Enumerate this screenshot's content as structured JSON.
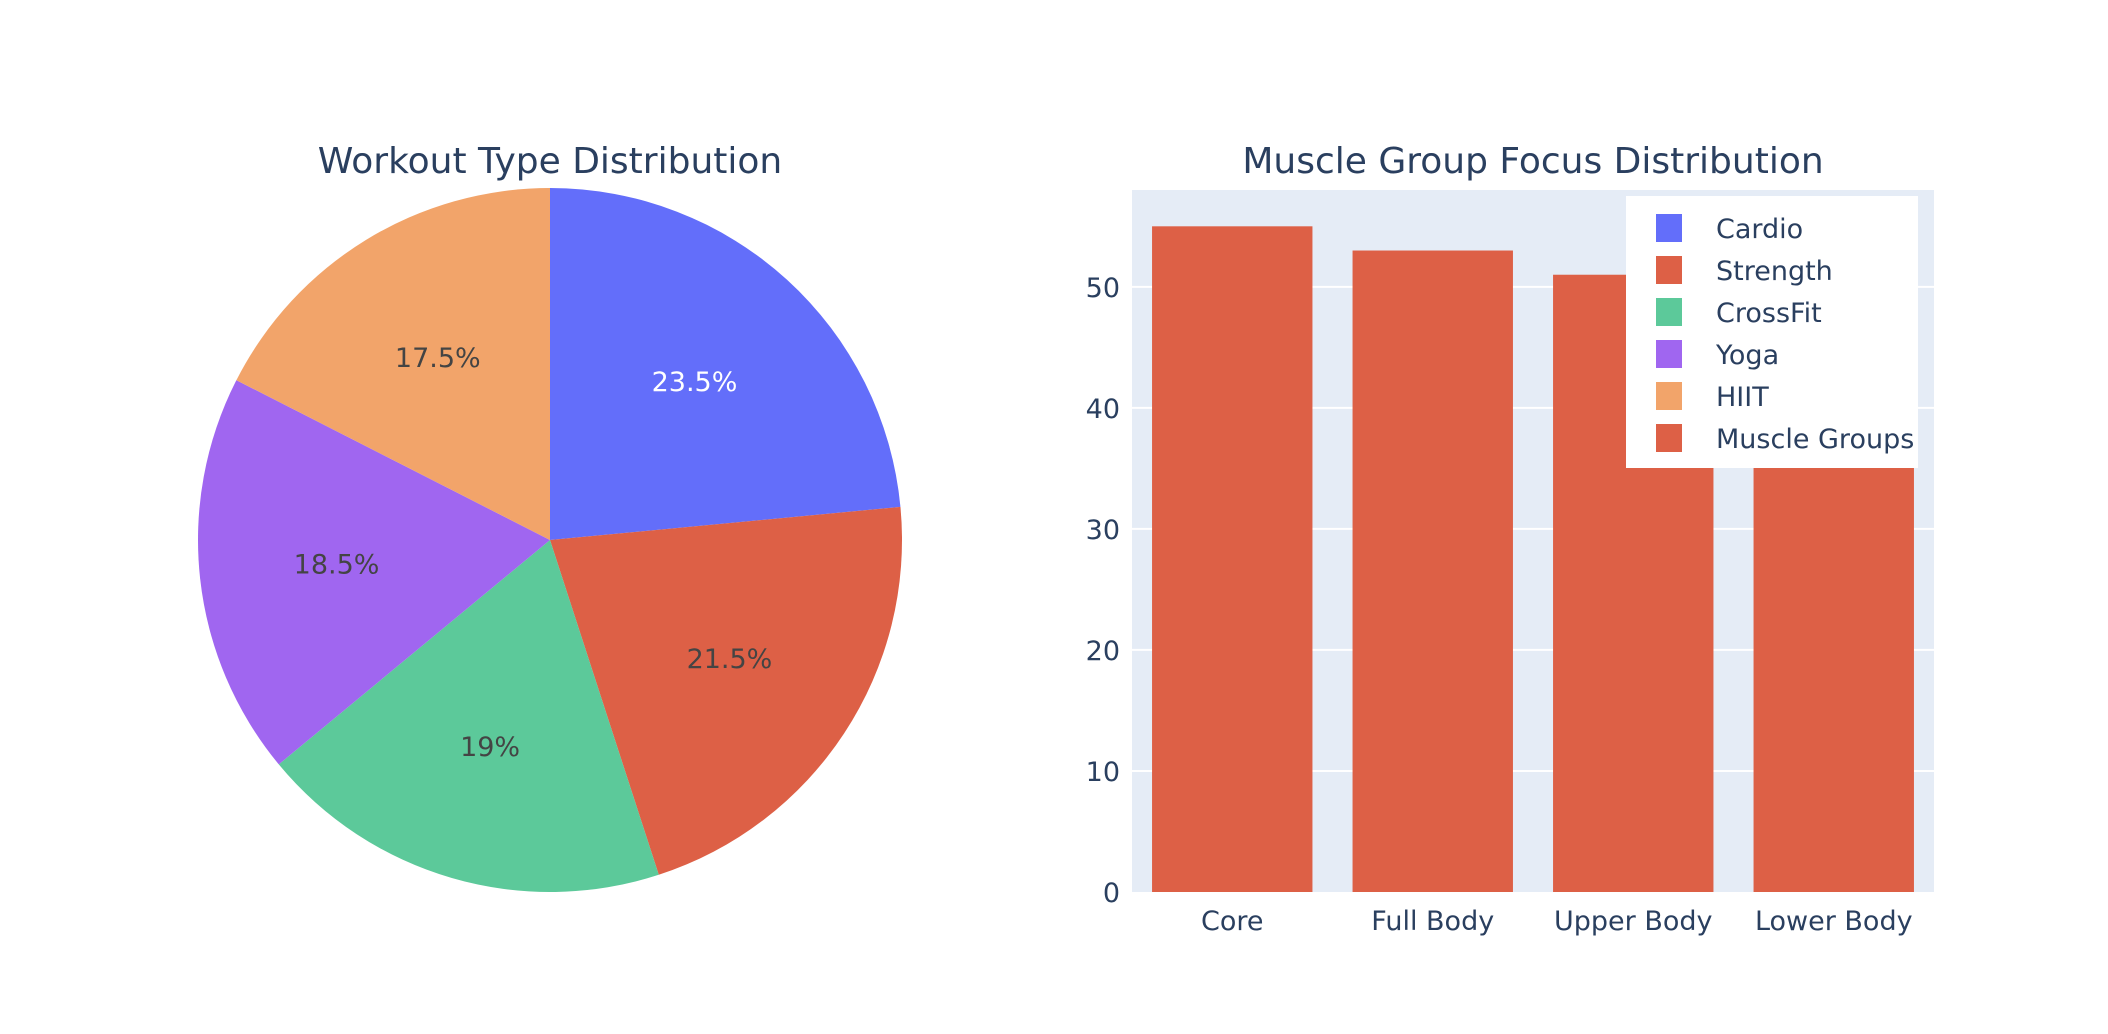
{
  "chart_data": [
    {
      "type": "pie",
      "title": "Workout Type Distribution",
      "labels": [
        "Cardio",
        "Strength",
        "CrossFit",
        "Yoga",
        "HIIT"
      ],
      "values": [
        23.5,
        21.5,
        19,
        18.5,
        17.5
      ],
      "slice_labels": [
        "23.5%",
        "21.5%",
        "19%",
        "18.5%",
        "17.5%"
      ],
      "colors": [
        "#636efa",
        "#dd6046",
        "#5cc99a",
        "#a066f0",
        "#f2a46a"
      ],
      "label_colors": [
        "#ffffff",
        "#444444",
        "#444444",
        "#444444",
        "#444444"
      ],
      "order": "clockwise",
      "start": "top"
    },
    {
      "type": "bar",
      "title": "Muscle Group Focus Distribution",
      "categories": [
        "Core",
        "Full Body",
        "Upper Body",
        "Lower Body"
      ],
      "series": [
        {
          "name": "Muscle Groups",
          "values": [
            55,
            53,
            51,
            49
          ],
          "color": "#dd6046"
        }
      ],
      "ylim": [
        0,
        58
      ],
      "yticks": [
        0,
        10,
        20,
        30,
        40,
        50
      ],
      "grid": true,
      "plot_background": "#e5ecf6",
      "legend_position": "top-right",
      "legend": [
        {
          "label": "Cardio",
          "color": "#636efa"
        },
        {
          "label": "Strength",
          "color": "#dd6046"
        },
        {
          "label": "CrossFit",
          "color": "#5cc99a"
        },
        {
          "label": "Yoga",
          "color": "#a066f0"
        },
        {
          "label": "HIIT",
          "color": "#f2a46a"
        },
        {
          "label": "Muscle Groups",
          "color": "#dd6046"
        }
      ]
    }
  ],
  "text_color": "#2a3f5f"
}
